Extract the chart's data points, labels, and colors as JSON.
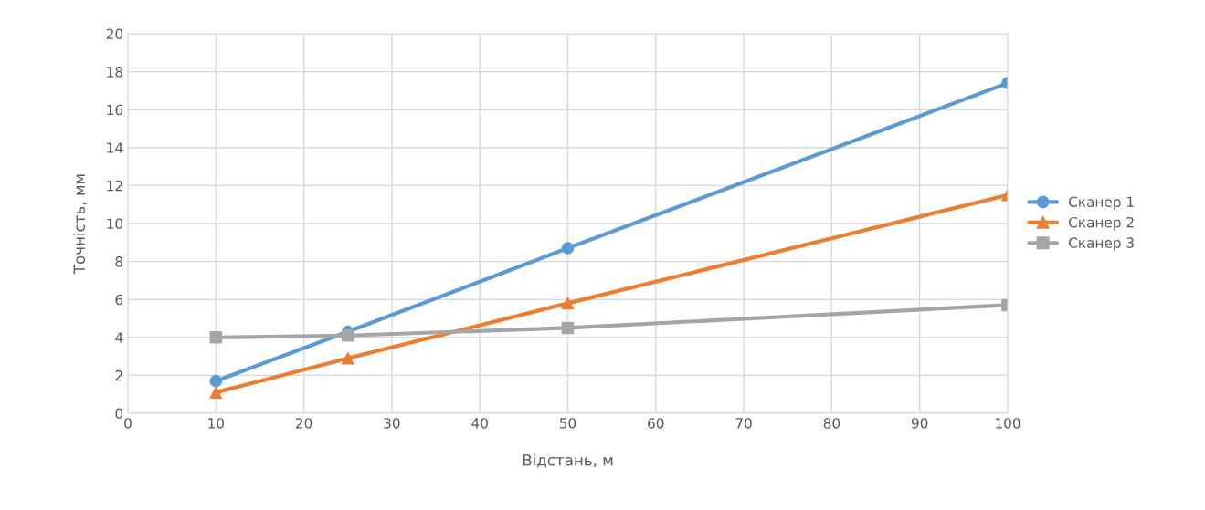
{
  "chart_data": {
    "type": "line",
    "xlabel": "Відстань, м",
    "ylabel": "Точність, мм",
    "x": [
      10,
      25,
      50,
      100
    ],
    "series": [
      {
        "name": "Сканер 1",
        "color": "#5b9bd5",
        "marker": "circle",
        "values": [
          1.7,
          4.3,
          8.7,
          17.4
        ]
      },
      {
        "name": "Сканер 2",
        "color": "#ed7d31",
        "marker": "triangle",
        "values": [
          1.1,
          2.9,
          5.8,
          11.5
        ]
      },
      {
        "name": "Сканер 3",
        "color": "#a5a5a5",
        "marker": "square",
        "values": [
          4.0,
          4.1,
          4.5,
          5.7
        ]
      }
    ],
    "xlim": [
      0,
      100
    ],
    "xticks": [
      0,
      10,
      20,
      30,
      40,
      50,
      60,
      70,
      80,
      90,
      100
    ],
    "ylim": [
      0,
      20
    ],
    "yticks": [
      0,
      2,
      4,
      6,
      8,
      10,
      12,
      14,
      16,
      18,
      20
    ],
    "grid": true,
    "legend": "right",
    "line_style": "solid"
  }
}
